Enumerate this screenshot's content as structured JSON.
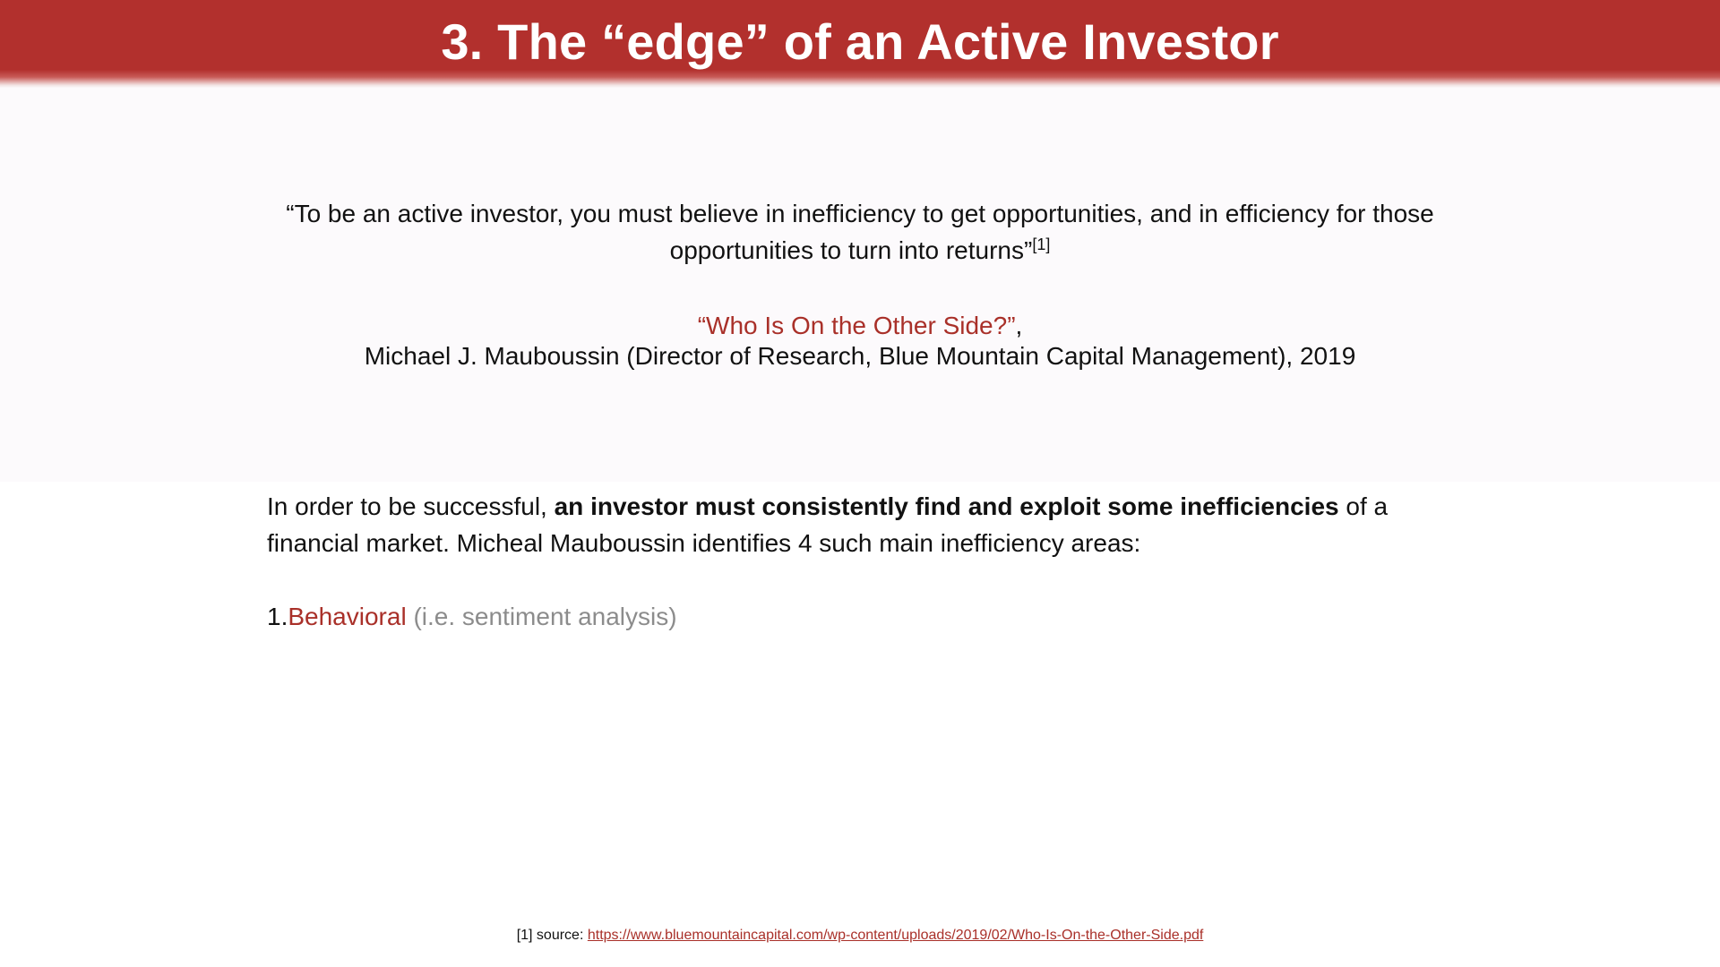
{
  "slide": {
    "title": "3. The “edge” of an Active Investor"
  },
  "quote": {
    "text": "“To be an active investor, you must believe in inefficiency to get opportunities, and in efficiency for those opportunities to turn into returns”",
    "footnote_ref": "[1]"
  },
  "citation": {
    "title": "“Who Is On the Other Side?”",
    "title_suffix": ",",
    "author": "Michael J. Mauboussin (Director of Research, Blue Mountain Capital Management), 2019"
  },
  "body": {
    "intro": "In order to be successful, ",
    "emphasis": "an investor must consistently find and exploit some inefficiencies",
    "rest": " of a financial market. Micheal Mauboussin identifies 4 such main inefficiency areas:"
  },
  "list": {
    "items": [
      {
        "number": "1.",
        "label": "Behavioral",
        "note": " (i.e. sentiment analysis)"
      }
    ]
  },
  "footnote": {
    "label": "[1] source: ",
    "link_text": "https://www.bluemountaincapital.com/wp-content/uploads/2019/02/Who-Is-On-the-Other-Side.pdf"
  },
  "colors": {
    "title_bar": "#b2302d",
    "accent": "#a93029",
    "muted": "#8c8c8c"
  }
}
